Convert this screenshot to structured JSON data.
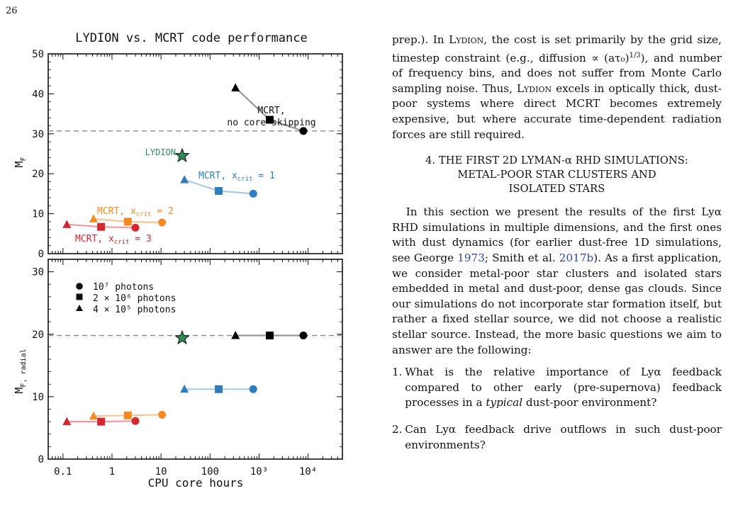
{
  "page": {
    "number": "26"
  },
  "figure": {
    "title": "LYDION vs. MCRT code performance",
    "xlabel": "CPU core hours",
    "xticks": [
      "0.1",
      "1",
      "10",
      "100",
      "10³",
      "10⁴"
    ],
    "top_panel": {
      "ylabel": "M_F",
      "yticks": [
        "0",
        "10",
        "20",
        "30",
        "40",
        "50"
      ],
      "annotations": {
        "mcrt_no_core_1": "MCRT,",
        "mcrt_no_core_2": "no core−skipping",
        "lydion": "LYDION",
        "xcrit1": "MCRT, x_crit = 1",
        "xcrit2": "MCRT, x_crit = 2",
        "xcrit3": "MCRT, x_crit = 3"
      }
    },
    "bottom_panel": {
      "ylabel": "M_F, radial",
      "yticks": [
        "0",
        "10",
        "20",
        "30"
      ],
      "legend": [
        "10⁷ photons",
        "2 × 10⁶ photons",
        "4 × 10⁵ photons"
      ]
    },
    "colors": {
      "no_core": "#000000",
      "no_core_line": "#999999",
      "xcrit1": "#2f7ebc",
      "xcrit1_line": "#a9cbe6",
      "xcrit2": "#f58a23",
      "xcrit2_line": "#fbc592",
      "xcrit3": "#d62631",
      "xcrit3_line": "#f09aa0",
      "lydion": "#2e8b57",
      "dashed": "#888888"
    }
  },
  "chart_data": [
    {
      "type": "scatter",
      "title": "LYDION vs. MCRT code performance",
      "xlabel": "CPU core hours",
      "ylabel": "M_F",
      "xscale": "log",
      "xlim": [
        0.05,
        50000
      ],
      "ylim": [
        0,
        50
      ],
      "hline": 30.7,
      "series": [
        {
          "name": "MCRT, no core−skipping",
          "key": "no_core",
          "x": [
            330,
            1650,
            8000
          ],
          "y": [
            41.5,
            33.5,
            30.7
          ],
          "markers": [
            "triangle",
            "square",
            "circle"
          ]
        },
        {
          "name": "MCRT, x_crit = 1",
          "key": "xcrit1",
          "x": [
            30,
            150,
            760
          ],
          "y": [
            18.5,
            15.7,
            15.0
          ],
          "markers": [
            "triangle",
            "square",
            "circle"
          ]
        },
        {
          "name": "MCRT, x_crit = 2",
          "key": "xcrit2",
          "x": [
            0.42,
            2.1,
            10.5
          ],
          "y": [
            8.7,
            8.0,
            7.8
          ],
          "markers": [
            "triangle",
            "square",
            "circle"
          ]
        },
        {
          "name": "MCRT, x_crit = 3",
          "key": "xcrit3",
          "x": [
            0.12,
            0.6,
            3.0
          ],
          "y": [
            7.3,
            6.7,
            6.5
          ],
          "markers": [
            "triangle",
            "square",
            "circle"
          ]
        },
        {
          "name": "LYDION",
          "key": "lydion",
          "x": [
            27
          ],
          "y": [
            24.5
          ],
          "markers": [
            "star"
          ]
        }
      ]
    },
    {
      "type": "scatter",
      "xlabel": "CPU core hours",
      "ylabel": "M_F, radial",
      "xscale": "log",
      "xlim": [
        0.05,
        50000
      ],
      "ylim": [
        0,
        32
      ],
      "hline": 19.8,
      "legend": [
        "10⁷ photons",
        "2 × 10⁶ photons",
        "4 × 10⁵ photons"
      ],
      "legend_position": "top-left",
      "series": [
        {
          "key": "no_core",
          "x": [
            330,
            1650,
            8000
          ],
          "y": [
            19.8,
            19.8,
            19.8
          ],
          "markers": [
            "triangle",
            "square",
            "circle"
          ]
        },
        {
          "key": "xcrit1",
          "x": [
            30,
            150,
            760
          ],
          "y": [
            11.2,
            11.2,
            11.2
          ],
          "markers": [
            "triangle",
            "square",
            "circle"
          ]
        },
        {
          "key": "xcrit2",
          "x": [
            0.42,
            2.1,
            10.5
          ],
          "y": [
            6.9,
            7.0,
            7.1
          ],
          "markers": [
            "triangle",
            "square",
            "circle"
          ]
        },
        {
          "key": "xcrit3",
          "x": [
            0.12,
            0.6,
            3.0
          ],
          "y": [
            6.0,
            6.0,
            6.1
          ],
          "markers": [
            "triangle",
            "square",
            "circle"
          ]
        },
        {
          "key": "lydion",
          "x": [
            27
          ],
          "y": [
            19.4
          ],
          "markers": [
            "star"
          ]
        }
      ]
    }
  ],
  "text": {
    "para1": {
      "a": "prep.).  In ",
      "lydion": "Lydion",
      "b": ", the cost is set primarily by the grid size, timestep constraint (e.g., diffusion ∝ (aτ₀)",
      "exp": "1/3",
      "c": "), and number of frequency bins, and does not suffer from Monte Carlo sampling noise.  Thus, ",
      "lydion2": "Lydion",
      "d": " excels in optically thick, dust-poor systems where direct MCRT becomes extremely expensive, but where accurate time-dependent radiation forces are still required."
    },
    "section": {
      "line1": "4. THE FIRST 2D LYMAN-α RHD SIMULATIONS:",
      "line2": "METAL-POOR STAR CLUSTERS AND",
      "line3": "ISOLATED STARS"
    },
    "para2": {
      "a": "In this section we present the results of the first Lyα RHD simulations in multiple dimensions, and the first ones with dust dynamics (for earlier dust-free 1D simulations, see George ",
      "cite1": "1973",
      "b": "; Smith et al. ",
      "cite2": "2017b",
      "c": ").  As a first application, we consider metal-poor star clusters and isolated stars embedded in metal and dust-poor, dense gas clouds.  Since our simulations do not incorporate star formation itself, but rather a fixed stellar source, we did not choose a realistic stellar source.  Instead, the more basic questions we aim to answer are the following:"
    },
    "list": [
      {
        "num": "1.",
        "a": "What is the relative importance of Lyα feedback compared to other early (pre-supernova) feedback processes in a ",
        "em": "typical",
        "b": " dust-poor environment?"
      },
      {
        "num": "2.",
        "a": "Can Lyα feedback drive outflows in such dust-poor environments?"
      }
    ]
  }
}
